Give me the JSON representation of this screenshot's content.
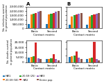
{
  "chart_data": [
    {
      "type": "bar",
      "title": "A",
      "categories": [
        "Basic",
        "Second"
      ],
      "series": [
        {
          "name": "HW1",
          "values": [
            500000,
            500000
          ]
        },
        {
          "name": "20-59 (50)",
          "values": [
            1600000,
            1600000
          ]
        },
        {
          "name": "20-59 (25)",
          "values": [
            1700000,
            1700000
          ]
        },
        {
          "name": "HW2",
          "values": [
            1800000,
            1800000
          ]
        },
        {
          "name": "HW3",
          "values": [
            1900000,
            1900000
          ]
        },
        {
          "name": "Entire pop.",
          "values": [
            2000000,
            2000000
          ]
        }
      ],
      "x_label": "Contact matrix",
      "y_label": "No. infections averted\nin general population",
      "ylim": [
        0,
        2500000
      ],
      "yticks": [
        0,
        {
          "value": 500000,
          "label": "500,000"
        },
        {
          "value": 1000000,
          "label": "1,000,000"
        },
        {
          "value": 1500000,
          "label": "1,500,000"
        },
        {
          "value": 2000000,
          "label": "2,000,000"
        },
        {
          "value": 2500000,
          "label": "2,500,000"
        }
      ],
      "legend": "lower left"
    },
    {
      "type": "bar",
      "title": "B",
      "categories": [
        "Basic",
        "Second"
      ],
      "series": [
        {
          "name": "HW1",
          "values": [
            400000,
            400000
          ]
        },
        {
          "name": "20-59 (50)",
          "values": [
            1400000,
            1400000
          ]
        },
        {
          "name": "20-59 (25)",
          "values": [
            1500000,
            1500000
          ]
        },
        {
          "name": "HW2",
          "values": [
            1600000,
            1600000
          ]
        },
        {
          "name": "HW3",
          "values": [
            1700000,
            1700000
          ]
        },
        {
          "name": "Entire pop.",
          "values": [
            1800000,
            1800000
          ]
        }
      ],
      "x_label": "Contact matrix",
      "ylim": [
        0,
        2500000
      ],
      "yticks": [
        0,
        500000,
        1000000,
        1500000,
        2000000,
        2500000
      ],
      "tick_labels": "x"
    },
    {
      "type": "bar",
      "categories": [
        "Basic",
        "Second"
      ],
      "series": [
        {
          "name": "HW1",
          "values": [
            5000,
            3000
          ]
        },
        {
          "name": "20-59 (50)",
          "values": [
            5500,
            3500
          ]
        },
        {
          "name": "20-59 (25)",
          "values": [
            6000,
            4000
          ]
        },
        {
          "name": "HW2",
          "values": [
            20000,
            8000
          ]
        },
        {
          "name": "HW3",
          "values": [
            4000,
            3000
          ]
        },
        {
          "name": "Entire pop.",
          "values": [
            3000,
            2000
          ]
        }
      ],
      "x_label": "Contact matrix",
      "y_label": "No. deaths averted\nin general population",
      "ylim": [
        0,
        22000
      ],
      "yticks": [
        0,
        {
          "value": 5000,
          "label": "5,000"
        },
        {
          "value": 10000,
          "label": "10,000"
        },
        {
          "value": 15000,
          "label": "15,000"
        },
        {
          "value": 20000,
          "label": "20,000"
        }
      ]
    },
    {
      "type": "bar",
      "categories": [
        "Basic",
        "Second"
      ],
      "series": [
        {
          "name": "HW1",
          "values": [
            4000,
            2500
          ]
        },
        {
          "name": "20-59 (50)",
          "values": [
            4500,
            3000
          ]
        },
        {
          "name": "20-59 (25)",
          "values": [
            5000,
            3500
          ]
        },
        {
          "name": "HW2",
          "values": [
            8000,
            15000
          ]
        },
        {
          "name": "HW3",
          "values": [
            3500,
            2500
          ]
        },
        {
          "name": "Entire pop.",
          "values": [
            2500,
            1500
          ]
        }
      ],
      "x_label": "Contact matrix",
      "ylim": [
        0,
        16000
      ],
      "yticks": [
        0,
        5000,
        10000,
        15000
      ],
      "tick_labels": "x"
    }
  ]
}
